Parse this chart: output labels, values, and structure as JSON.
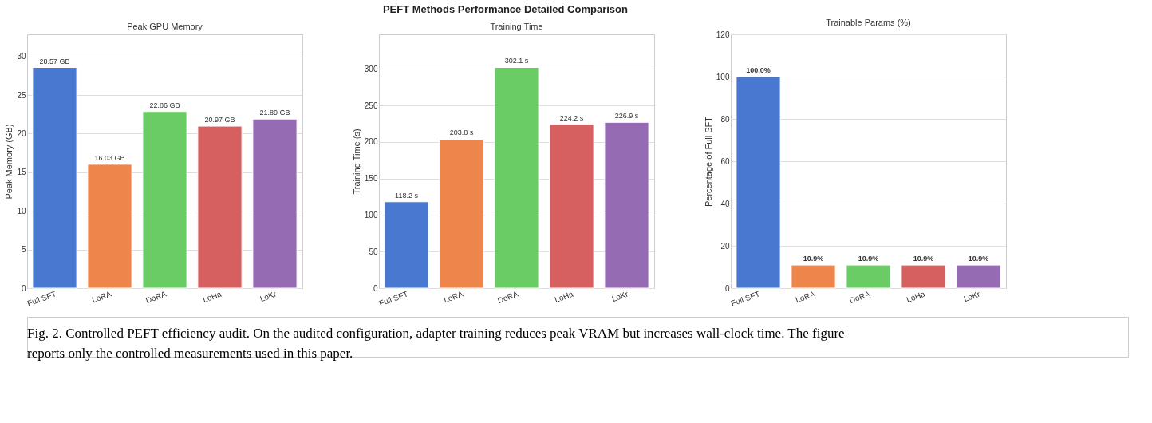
{
  "chart_data": [
    {
      "type": "bar",
      "title": "Peak GPU Memory",
      "ylabel": "Peak Memory (GB)",
      "categories": [
        "Full SFT",
        "LoRA",
        "DoRA",
        "LoHa",
        "LoKr"
      ],
      "values": [
        28.57,
        16.03,
        22.86,
        20.97,
        21.89
      ],
      "colors": [
        "#4878d0",
        "#ee854a",
        "#6acc64",
        "#d65f5f",
        "#956cb4"
      ],
      "value_labels": [
        "28.57 GB",
        "16.03 GB",
        "22.86 GB",
        "20.97 GB",
        "21.89 GB"
      ],
      "ylim": [
        0,
        32.86
      ],
      "yticks": [
        0,
        5,
        10,
        15,
        20,
        25,
        30
      ],
      "grid": "y",
      "legend": false,
      "annotations": [
        "PEFT Methods Performance Detailed Comparison",
        "Fig. 2. Controlled PEFT efficiency audit. On the audited configuration, adapter training reduces peak VRAM but increases wall-clock time. The figure reports only the controlled measurements used in this paper."
      ]
    },
    {
      "type": "bar",
      "title": "Training Time",
      "ylabel": "Training Time (s)",
      "categories": [
        "Full SFT",
        "LoRA",
        "DoRA",
        "LoHa",
        "LoKr"
      ],
      "values": [
        118.2,
        203.8,
        302.1,
        224.2,
        226.9
      ],
      "colors": [
        "#4878d0",
        "#ee854a",
        "#6acc64",
        "#d65f5f",
        "#956cb4"
      ],
      "value_labels": [
        "118.2 s",
        "203.8 s",
        "302.1 s",
        "224.2 s",
        "226.9 s"
      ],
      "ylim": [
        0,
        347.4
      ],
      "yticks": [
        0,
        50,
        100,
        150,
        200,
        250,
        300
      ],
      "grid": "y",
      "legend": false
    },
    {
      "type": "bar",
      "title": "Trainable Params (%)",
      "ylabel": "Percentage of Full SFT",
      "categories": [
        "Full SFT",
        "LoRA",
        "DoRA",
        "LoHa",
        "LoKr"
      ],
      "values": [
        100.0,
        10.9,
        10.9,
        10.9,
        10.9
      ],
      "colors": [
        "#4878d0",
        "#ee854a",
        "#6acc64",
        "#d65f5f",
        "#956cb4"
      ],
      "value_labels": [
        "100.0%",
        "10.9%",
        "10.9%",
        "10.9%",
        "10.9%"
      ],
      "ylim": [
        0,
        120
      ],
      "yticks": [
        0,
        20,
        40,
        60,
        80,
        100,
        120
      ],
      "grid": "y",
      "legend": false
    }
  ]
}
